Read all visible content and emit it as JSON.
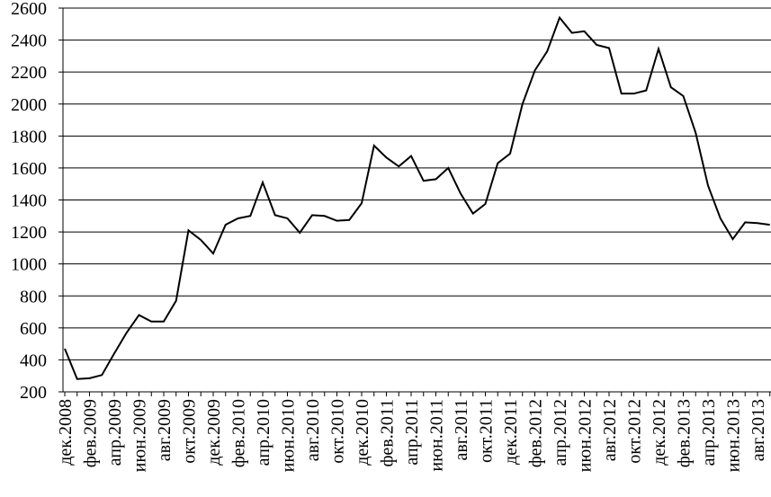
{
  "chart_data": {
    "type": "line",
    "categories": [
      "дек.2008",
      null,
      "фев.2009",
      null,
      "апр.2009",
      null,
      "июн.2009",
      null,
      "авг.2009",
      null,
      "окт.2009",
      null,
      "дек.2009",
      null,
      "фев.2010",
      null,
      "апр.2010",
      null,
      "июн.2010",
      null,
      "авг.2010",
      null,
      "окт.2010",
      null,
      "дек.2010",
      null,
      "фев.2011",
      null,
      "апр.2011",
      null,
      "июн.2011",
      null,
      "авг.2011",
      null,
      "окт.2011",
      null,
      "дек.2011",
      null,
      "фев.2012",
      null,
      "апр.2012",
      null,
      "июн.2012",
      null,
      "авг.2012",
      null,
      "окт.2012",
      null,
      "дек.2012",
      null,
      "фев.2013",
      null,
      "апр.2013",
      null,
      "июн.2013",
      null,
      "авг.2013",
      null
    ],
    "values": [
      470,
      280,
      285,
      305,
      440,
      570,
      680,
      640,
      640,
      770,
      1210,
      1150,
      1065,
      1245,
      1285,
      1300,
      1510,
      1305,
      1285,
      1195,
      1305,
      1300,
      1270,
      1275,
      1380,
      1740,
      1665,
      1610,
      1675,
      1520,
      1530,
      1600,
      1440,
      1315,
      1375,
      1630,
      1690,
      2000,
      2210,
      2330,
      2540,
      2445,
      2455,
      2370,
      2350,
      2065,
      2065,
      2085,
      2345,
      2105,
      2050,
      1820,
      1490,
      1285,
      1155,
      1260,
      1255,
      1245
    ],
    "color": "#000000",
    "ylim": [
      200,
      2600
    ],
    "yticks": [
      200,
      400,
      600,
      800,
      1000,
      1200,
      1400,
      1600,
      1800,
      2000,
      2200,
      2400,
      2600
    ],
    "grid": true
  }
}
